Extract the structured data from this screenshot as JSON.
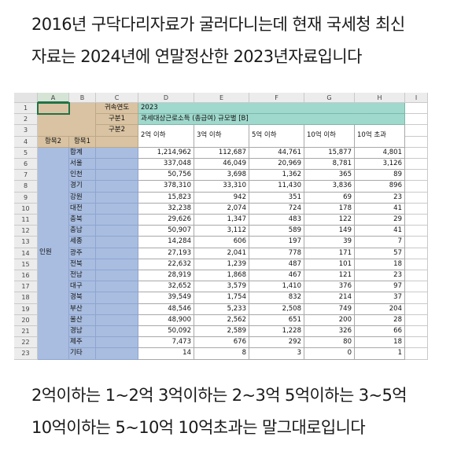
{
  "captions": {
    "line1": "2016년 구닥다리자료가 굴러다니는데 현재 국세청 최신",
    "line2": "자료는 2024년에 연말정산한 2023년자료입니다",
    "line3": "2억이하는 1~2억 3억이하는 2~3억 5억이하는 3~5억",
    "line4": "10억이하는 5~10억 10억초과는 말그대로입니다"
  },
  "spreadsheet": {
    "columns": [
      "A",
      "B",
      "C",
      "D",
      "E",
      "F",
      "G",
      "H",
      "I"
    ],
    "row_numbers": [
      "1",
      "2",
      "3",
      "4",
      "5",
      "6",
      "7",
      "8",
      "9",
      "10",
      "11",
      "12",
      "13",
      "14",
      "15",
      "16",
      "17",
      "18",
      "19",
      "20",
      "21",
      "22",
      "23"
    ],
    "labels": {
      "year_label": "귀속연도",
      "year_value": "2023",
      "cat1_label": "구분1",
      "cat1_value": "과세대상근로소득 (총급여) 규모별 [B]",
      "cat2_label": "구분2",
      "item2": "항목2",
      "item1": "항목1",
      "group_label": "인원"
    },
    "headers": [
      "2억 이하",
      "3억 이하",
      "5억 이하",
      "10억 이하",
      "10억 초과"
    ],
    "rows": [
      {
        "region": "합계",
        "values": [
          "1,214,962",
          "112,687",
          "44,761",
          "15,877",
          "4,801"
        ]
      },
      {
        "region": "서울",
        "values": [
          "337,048",
          "46,049",
          "20,969",
          "8,781",
          "3,126"
        ]
      },
      {
        "region": "인천",
        "values": [
          "50,756",
          "3,698",
          "1,362",
          "365",
          "89"
        ]
      },
      {
        "region": "경기",
        "values": [
          "378,310",
          "33,310",
          "11,430",
          "3,836",
          "896"
        ]
      },
      {
        "region": "강원",
        "values": [
          "15,823",
          "942",
          "351",
          "69",
          "23"
        ]
      },
      {
        "region": "대전",
        "values": [
          "32,238",
          "2,074",
          "724",
          "178",
          "41"
        ]
      },
      {
        "region": "충북",
        "values": [
          "29,626",
          "1,347",
          "483",
          "122",
          "29"
        ]
      },
      {
        "region": "충남",
        "values": [
          "50,907",
          "3,112",
          "589",
          "149",
          "41"
        ]
      },
      {
        "region": "세종",
        "values": [
          "14,284",
          "606",
          "197",
          "39",
          "7"
        ]
      },
      {
        "region": "광주",
        "values": [
          "27,193",
          "2,041",
          "778",
          "171",
          "57"
        ]
      },
      {
        "region": "전북",
        "values": [
          "22,632",
          "1,239",
          "487",
          "101",
          "18"
        ]
      },
      {
        "region": "전남",
        "values": [
          "28,919",
          "1,868",
          "467",
          "121",
          "23"
        ]
      },
      {
        "region": "대구",
        "values": [
          "32,652",
          "3,579",
          "1,410",
          "376",
          "97"
        ]
      },
      {
        "region": "경북",
        "values": [
          "39,549",
          "1,754",
          "832",
          "214",
          "37"
        ]
      },
      {
        "region": "부산",
        "values": [
          "48,546",
          "5,233",
          "2,508",
          "749",
          "204"
        ]
      },
      {
        "region": "울산",
        "values": [
          "48,900",
          "2,562",
          "651",
          "200",
          "28"
        ]
      },
      {
        "region": "경남",
        "values": [
          "50,092",
          "2,589",
          "1,228",
          "326",
          "66"
        ]
      },
      {
        "region": "제주",
        "values": [
          "7,473",
          "676",
          "292",
          "80",
          "18"
        ]
      },
      {
        "region": "기타",
        "values": [
          "14",
          "8",
          "3",
          "0",
          "1"
        ]
      }
    ]
  }
}
